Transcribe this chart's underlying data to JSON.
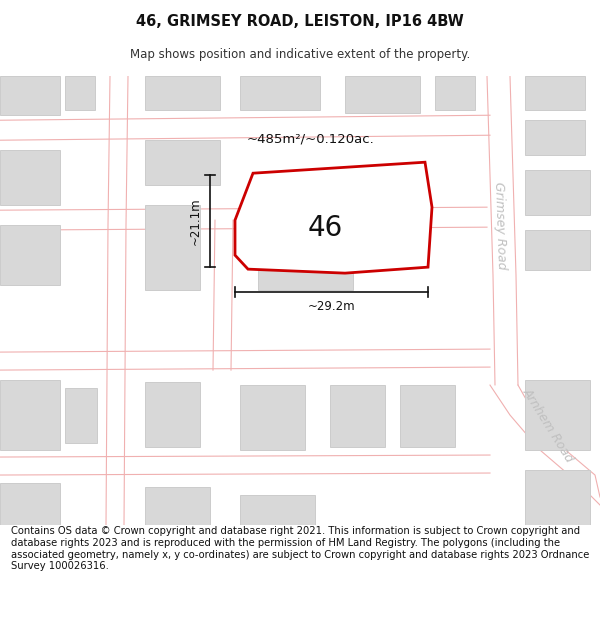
{
  "title": "46, GRIMSEY ROAD, LEISTON, IP16 4BW",
  "subtitle": "Map shows position and indicative extent of the property.",
  "footer": "Contains OS data © Crown copyright and database right 2021. This information is subject to Crown copyright and database rights 2023 and is reproduced with the permission of HM Land Registry. The polygons (including the associated geometry, namely x, y co-ordinates) are subject to Crown copyright and database rights 2023 Ordnance Survey 100026316.",
  "property_number": "46",
  "area_label": "~485m²/~0.120ac.",
  "width_label": "~29.2m",
  "height_label": "~21.1m",
  "bg_color": "#ffffff",
  "map_bg": "#f7f5f5",
  "road_line_color": "#f0b0b0",
  "building_color": "#d8d8d8",
  "building_stroke": "#cccccc",
  "property_fill": "#ffffff",
  "property_stroke": "#cc0000",
  "road_label_color": "#c0c0c0",
  "grimsey_label": "Grimsey Road",
  "arnhem_label": "Arnhem Road",
  "title_fontsize": 10.5,
  "subtitle_fontsize": 8.5,
  "footer_fontsize": 7.2,
  "area_fontsize": 9.5,
  "number_fontsize": 20,
  "road_label_fontsize": 9,
  "dim_fontsize": 8.5
}
